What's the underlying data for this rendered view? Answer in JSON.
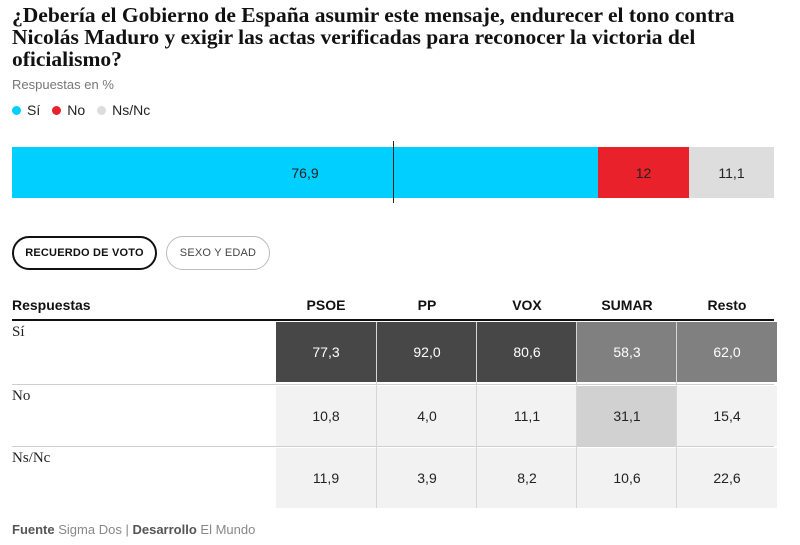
{
  "title": "¿Debería el Gobierno de España asumir este mensaje, endurecer el tono contra Nicolás Maduro y exigir las actas verificadas para reconocer la victoria del oficialismo?",
  "subtitle": "Respuestas en %",
  "legend": [
    {
      "label": "Sí",
      "color": "#00cfff"
    },
    {
      "label": "No",
      "color": "#e8212a"
    },
    {
      "label": "Ns/Nc",
      "color": "#dddddd"
    }
  ],
  "tabs": [
    {
      "label": "RECUERDO DE VOTO",
      "active": true
    },
    {
      "label": "SEXO Y EDAD",
      "active": false
    }
  ],
  "table": {
    "header_label": "Respuestas",
    "columns": [
      "PSOE",
      "PP",
      "VOX",
      "SUMAR",
      "Resto"
    ],
    "rows": [
      {
        "label": "Sí",
        "values": [
          "77,3",
          "92,0",
          "80,6",
          "58,3",
          "62,0"
        ]
      },
      {
        "label": "No",
        "values": [
          "10,8",
          "4,0",
          "11,1",
          "31,1",
          "15,4"
        ]
      },
      {
        "label": "Ns/Nc",
        "values": [
          "11,9",
          "3,9",
          "8,2",
          "10,6",
          "22,6"
        ]
      }
    ]
  },
  "footer": {
    "source_label": "Fuente",
    "source": "Sigma Dos",
    "dev_label": "Desarrollo",
    "dev": "El Mundo"
  },
  "chart_data": {
    "type": "bar",
    "stacked": true,
    "orientation": "horizontal",
    "title": "¿Debería el Gobierno de España asumir este mensaje, endurecer el tono contra Nicolás Maduro y exigir las actas verificadas para reconocer la victoria del oficialismo?",
    "subtitle": "Respuestas en %",
    "series": [
      {
        "name": "Sí",
        "value": 76.9,
        "label": "76,9",
        "color": "#00cfff"
      },
      {
        "name": "No",
        "value": 12,
        "label": "12",
        "color": "#e8212a"
      },
      {
        "name": "Ns/Nc",
        "value": 11.1,
        "label": "11,1",
        "color": "#dddddd"
      }
    ],
    "xlim": [
      0,
      100
    ],
    "reference_line": 50
  }
}
